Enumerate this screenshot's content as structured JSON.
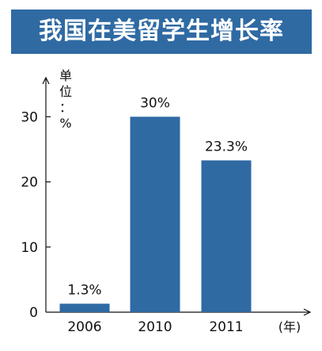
{
  "chart_data": {
    "type": "bar",
    "title": "我国在美留学生增长率",
    "unit_label": "单位：%",
    "unit_chars": [
      "单",
      "位",
      "：",
      "%"
    ],
    "xlabel": "(年)",
    "ylabel": "",
    "categories": [
      "2006",
      "2010",
      "2011"
    ],
    "values": [
      1.3,
      30,
      23.3
    ],
    "data_labels": [
      "1.3%",
      "30%",
      "23.3%"
    ],
    "yticks": [
      0,
      10,
      20,
      30
    ],
    "ylim": [
      0,
      36
    ],
    "grid": false,
    "bar_color": "#2f6aa3"
  }
}
